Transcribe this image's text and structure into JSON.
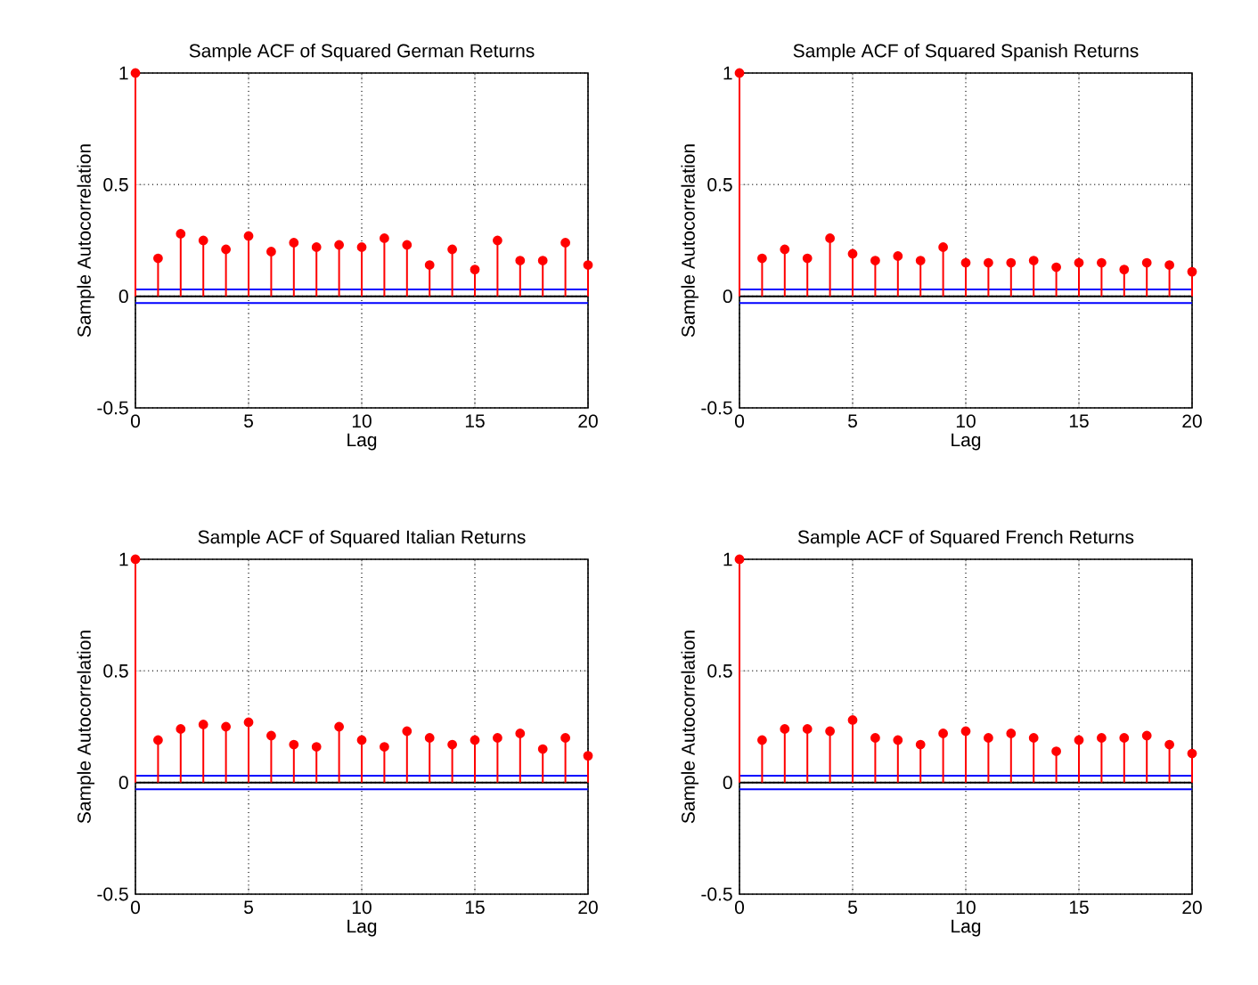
{
  "chart_data": [
    {
      "type": "lollipop",
      "title": "Sample ACF of Squared German Returns",
      "xlabel": "Lag",
      "ylabel": "Sample Autocorrelation",
      "x": [
        0,
        1,
        2,
        3,
        4,
        5,
        6,
        7,
        8,
        9,
        10,
        11,
        12,
        13,
        14,
        15,
        16,
        17,
        18,
        19,
        20
      ],
      "series": [
        {
          "color": "#ff0000",
          "values": [
            1,
            0.17,
            0.28,
            0.25,
            0.21,
            0.27,
            0.2,
            0.24,
            0.22,
            0.23,
            0.22,
            0.26,
            0.23,
            0.14,
            0.21,
            0.12,
            0.25,
            0.16,
            0.16,
            0.24,
            0.14
          ]
        }
      ],
      "xlim": [
        0,
        20
      ],
      "ylim": [
        -0.5,
        1
      ],
      "xticks": [
        0,
        5,
        10,
        15,
        20
      ],
      "yticks": [
        -0.5,
        0,
        0.5,
        1
      ],
      "grid": true,
      "marker": "circle",
      "ref_lines": [
        {
          "axis": "y",
          "value": 0.03,
          "color": "#0000ff"
        },
        {
          "axis": "y",
          "value": -0.03,
          "color": "#0000ff"
        },
        {
          "axis": "y",
          "value": 0,
          "color": "#000000"
        }
      ]
    },
    {
      "type": "lollipop",
      "title": "Sample ACF of Squared Spanish Returns",
      "xlabel": "Lag",
      "ylabel": "Sample Autocorrelation",
      "x": [
        0,
        1,
        2,
        3,
        4,
        5,
        6,
        7,
        8,
        9,
        10,
        11,
        12,
        13,
        14,
        15,
        16,
        17,
        18,
        19,
        20
      ],
      "series": [
        {
          "color": "#ff0000",
          "values": [
            1,
            0.17,
            0.21,
            0.17,
            0.26,
            0.19,
            0.16,
            0.18,
            0.16,
            0.22,
            0.15,
            0.15,
            0.15,
            0.16,
            0.13,
            0.15,
            0.15,
            0.12,
            0.15,
            0.14,
            0.11
          ]
        }
      ],
      "xlim": [
        0,
        20
      ],
      "ylim": [
        -0.5,
        1
      ],
      "xticks": [
        0,
        5,
        10,
        15,
        20
      ],
      "yticks": [
        -0.5,
        0,
        0.5,
        1
      ],
      "grid": true,
      "marker": "circle",
      "ref_lines": [
        {
          "axis": "y",
          "value": 0.03,
          "color": "#0000ff"
        },
        {
          "axis": "y",
          "value": -0.03,
          "color": "#0000ff"
        },
        {
          "axis": "y",
          "value": 0,
          "color": "#000000"
        }
      ]
    },
    {
      "type": "lollipop",
      "title": "Sample ACF of Squared Italian Returns",
      "xlabel": "Lag",
      "ylabel": "Sample Autocorrelation",
      "x": [
        0,
        1,
        2,
        3,
        4,
        5,
        6,
        7,
        8,
        9,
        10,
        11,
        12,
        13,
        14,
        15,
        16,
        17,
        18,
        19,
        20
      ],
      "series": [
        {
          "color": "#ff0000",
          "values": [
            1,
            0.19,
            0.24,
            0.26,
            0.25,
            0.27,
            0.21,
            0.17,
            0.16,
            0.25,
            0.19,
            0.16,
            0.23,
            0.2,
            0.17,
            0.19,
            0.2,
            0.22,
            0.15,
            0.2,
            0.12
          ]
        }
      ],
      "xlim": [
        0,
        20
      ],
      "ylim": [
        -0.5,
        1
      ],
      "xticks": [
        0,
        5,
        10,
        15,
        20
      ],
      "yticks": [
        -0.5,
        0,
        0.5,
        1
      ],
      "grid": true,
      "marker": "circle",
      "ref_lines": [
        {
          "axis": "y",
          "value": 0.03,
          "color": "#0000ff"
        },
        {
          "axis": "y",
          "value": -0.03,
          "color": "#0000ff"
        },
        {
          "axis": "y",
          "value": 0,
          "color": "#000000"
        }
      ]
    },
    {
      "type": "lollipop",
      "title": "Sample ACF of Squared French Returns",
      "xlabel": "Lag",
      "ylabel": "Sample Autocorrelation",
      "x": [
        0,
        1,
        2,
        3,
        4,
        5,
        6,
        7,
        8,
        9,
        10,
        11,
        12,
        13,
        14,
        15,
        16,
        17,
        18,
        19,
        20
      ],
      "series": [
        {
          "color": "#ff0000",
          "values": [
            1,
            0.19,
            0.24,
            0.24,
            0.23,
            0.28,
            0.2,
            0.19,
            0.17,
            0.22,
            0.23,
            0.2,
            0.22,
            0.2,
            0.14,
            0.19,
            0.2,
            0.2,
            0.21,
            0.17,
            0.13
          ]
        }
      ],
      "xlim": [
        0,
        20
      ],
      "ylim": [
        -0.5,
        1
      ],
      "xticks": [
        0,
        5,
        10,
        15,
        20
      ],
      "yticks": [
        -0.5,
        0,
        0.5,
        1
      ],
      "grid": true,
      "marker": "circle",
      "ref_lines": [
        {
          "axis": "y",
          "value": 0.03,
          "color": "#0000ff"
        },
        {
          "axis": "y",
          "value": -0.03,
          "color": "#0000ff"
        },
        {
          "axis": "y",
          "value": 0,
          "color": "#000000"
        }
      ]
    }
  ]
}
